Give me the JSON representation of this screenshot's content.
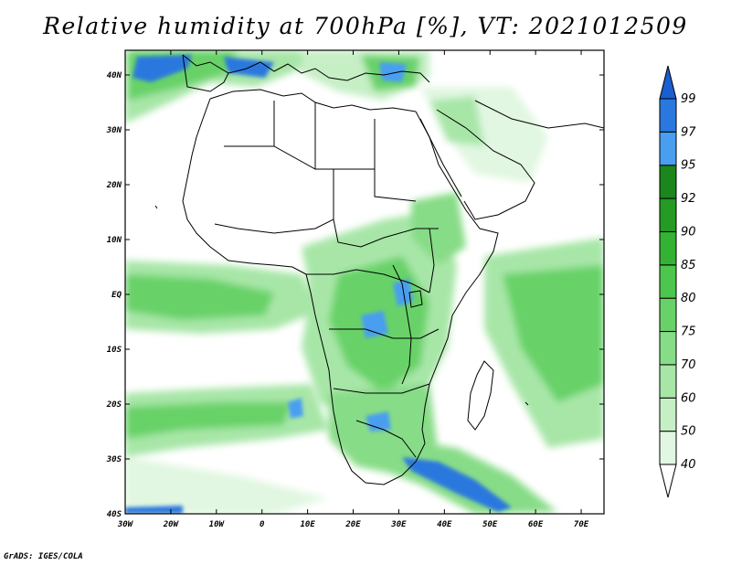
{
  "title": "Relative humidity at 700hPa [%], VT: 2021012509",
  "credit": "GrADS: IGES/COLA",
  "lon_labels": [
    "30W",
    "20W",
    "10W",
    "0",
    "10E",
    "20E",
    "30E",
    "40E",
    "50E",
    "60E",
    "70E"
  ],
  "lat_labels": [
    "40N",
    "30N",
    "20N",
    "10N",
    "EQ",
    "10S",
    "20S",
    "30S",
    "40S"
  ],
  "colorbar": {
    "labels": [
      "40",
      "50",
      "60",
      "70",
      "75",
      "80",
      "85",
      "90",
      "92",
      "95",
      "97",
      "99"
    ],
    "colors": [
      "#ffffff",
      "#e1f7e1",
      "#c6efc6",
      "#a7e6a7",
      "#87dc87",
      "#68d268",
      "#4cc64c",
      "#34b234",
      "#259a25",
      "#1b861b",
      "#4a9ef0",
      "#2a78de",
      "#1a5ecf"
    ]
  }
}
